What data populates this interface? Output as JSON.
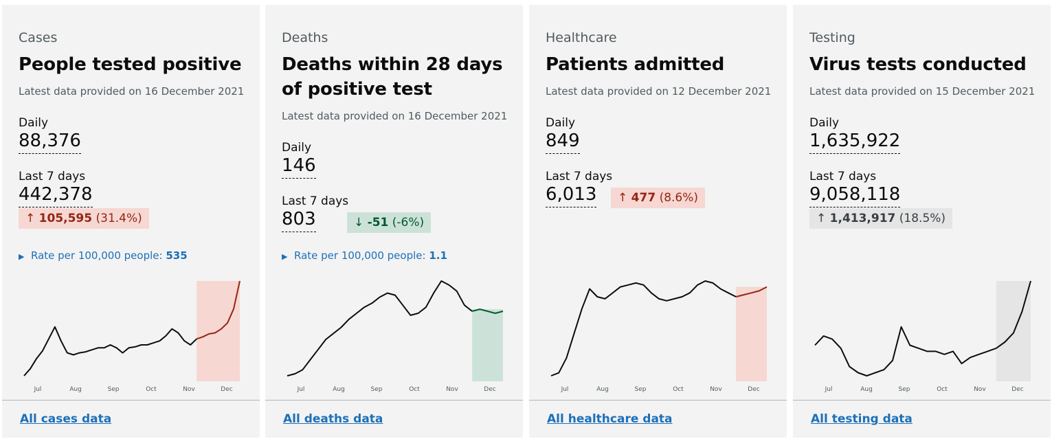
{
  "cards": [
    {
      "category": "Cases",
      "title": "People tested positive",
      "latest": "Latest data provided on 16 December 2021",
      "daily_label": "Daily",
      "daily_value": "88,376",
      "week_label": "Last 7 days",
      "week_value": "442,378",
      "change_arrow": "↑",
      "change_amount": "105,595",
      "change_pct": "(31.4%)",
      "change_trend": "up",
      "rate_label": "Rate per 100,000 people:",
      "rate_value": "535",
      "link": "All cases data",
      "chart_data": {
        "type": "line",
        "x_ticks": [
          "Jul",
          "Aug",
          "Sep",
          "Oct",
          "Nov",
          "Dec"
        ],
        "series": [
          {
            "values": [
              5,
              12,
              22,
              30,
              42,
              54,
              40,
              28,
              26,
              28,
              29,
              31,
              33,
              33,
              36,
              33,
              28,
              33,
              34,
              36,
              36,
              38,
              40,
              45,
              52,
              48,
              40,
              36,
              42,
              44,
              47,
              48,
              52,
              58,
              72,
              100
            ],
            "highlight_last": 7
          }
        ],
        "highlight_color": "#f6d7d2",
        "line_color": "#0b0c0c",
        "highlight_line_color": "#942514"
      }
    },
    {
      "category": "Deaths",
      "title": "Deaths within 28 days of positive test",
      "latest": "Latest data provided on 16 December 2021",
      "daily_label": "Daily",
      "daily_value": "146",
      "week_label": "Last 7 days",
      "week_value": "803",
      "change_arrow": "↓",
      "change_amount": "-51",
      "change_pct": "(-6%)",
      "change_trend": "down",
      "rate_label": "Rate per 100,000 people:",
      "rate_value": "1.1",
      "link": "All deaths data",
      "chart_data": {
        "type": "line",
        "x_ticks": [
          "Jul",
          "Aug",
          "Sep",
          "Oct",
          "Nov",
          "Dec"
        ],
        "series": [
          {
            "values": [
              2,
              4,
              8,
              18,
              28,
              38,
              44,
              50,
              58,
              64,
              70,
              74,
              80,
              84,
              82,
              72,
              62,
              64,
              70,
              84,
              96,
              92,
              86,
              72,
              66,
              68,
              66,
              64,
              66
            ],
            "highlight_last": 4
          }
        ],
        "highlight_color": "#cce2d8",
        "line_color": "#0b0c0c",
        "highlight_line_color": "#005a30"
      }
    },
    {
      "category": "Healthcare",
      "title": "Patients admitted",
      "latest": "Latest data provided on 12 December 2021",
      "daily_label": "Daily",
      "daily_value": "849",
      "week_label": "Last 7 days",
      "week_value": "6,013",
      "change_arrow": "↑",
      "change_amount": "477",
      "change_pct": "(8.6%)",
      "change_trend": "up",
      "rate_label": "",
      "rate_value": "",
      "link": "All healthcare data",
      "chart_data": {
        "type": "line",
        "x_ticks": [
          "Jul",
          "Aug",
          "Sep",
          "Oct",
          "Nov",
          "Dec"
        ],
        "series": [
          {
            "values": [
              2,
              5,
              20,
              45,
              70,
              90,
              82,
              80,
              86,
              92,
              94,
              96,
              94,
              86,
              80,
              78,
              80,
              82,
              86,
              94,
              98,
              96,
              90,
              86,
              82,
              84,
              86,
              88,
              92
            ],
            "highlight_last": 4
          }
        ],
        "highlight_color": "#f6d7d2",
        "line_color": "#0b0c0c",
        "highlight_line_color": "#942514"
      }
    },
    {
      "category": "Testing",
      "title": "Virus tests conducted",
      "latest": "Latest data provided on 15 December 2021",
      "daily_label": "Daily",
      "daily_value": "1,635,922",
      "week_label": "Last 7 days",
      "week_value": "9,058,118",
      "change_arrow": "↑",
      "change_amount": "1,413,917",
      "change_pct": "(18.5%)",
      "change_trend": "neutral",
      "rate_label": "",
      "rate_value": "",
      "link": "All testing data",
      "chart_data": {
        "type": "line",
        "x_ticks": [
          "Jul",
          "Aug",
          "Sep",
          "Oct",
          "Nov",
          "Dec"
        ],
        "series": [
          {
            "values": [
              58,
              64,
              62,
              56,
              44,
              40,
              38,
              40,
              42,
              48,
              70,
              58,
              56,
              54,
              54,
              52,
              54,
              46,
              50,
              52,
              54,
              56,
              60,
              66,
              80,
              100
            ],
            "highlight_last": 4
          }
        ],
        "highlight_color": "#e5e5e5",
        "line_color": "#0b0c0c",
        "highlight_line_color": "#0b0c0c"
      }
    }
  ]
}
